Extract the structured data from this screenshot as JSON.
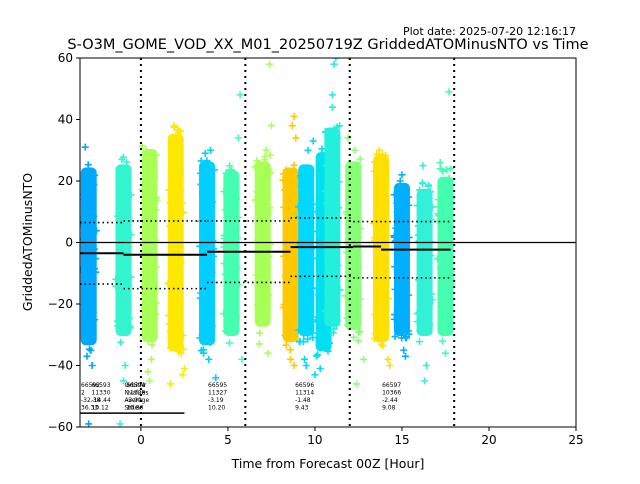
{
  "chart_data": {
    "type": "scatter",
    "title": "S-O3M_GOME_VOD_XX_M01_20250719Z GriddedATOMinusNTO vs Time",
    "plot_date": "Plot date: 2025-07-20 12:16:17",
    "xlabel": "Time from Forecast 00Z [Hour]",
    "ylabel": "GriddedATOMinusNTO",
    "xlim": [
      -3.5,
      25
    ],
    "ylim": [
      -60,
      60
    ],
    "xticks": [
      0,
      5,
      10,
      15,
      20,
      25
    ],
    "yticks": [
      -60,
      -40,
      -20,
      0,
      20,
      40,
      60
    ],
    "grid": false,
    "legend": "none",
    "reference_line_y": 0,
    "window_boundaries_x": [
      0,
      6,
      12,
      18
    ],
    "clusters": [
      {
        "x": -3.0,
        "top": 27,
        "bottom": -36,
        "color": "#00a8ff",
        "outliers": [
          [
            -3.2,
            31
          ],
          [
            -3.1,
            -37
          ],
          [
            -2.8,
            -40
          ],
          [
            -3.0,
            -59
          ]
        ]
      },
      {
        "x": -1.0,
        "top": 28,
        "bottom": -33,
        "color": "#33f5d0",
        "outliers": [
          [
            -1.1,
            27
          ],
          [
            -0.9,
            -40
          ],
          [
            -1.0,
            -45
          ],
          [
            -1.2,
            -59
          ]
        ]
      },
      {
        "x": 0.5,
        "top": 33,
        "bottom": -35,
        "color": "#a8ff55",
        "outliers": [
          [
            0.3,
            30
          ],
          [
            0.6,
            -38
          ],
          [
            0.4,
            -42
          ],
          [
            0.5,
            -45
          ]
        ]
      },
      {
        "x": 2.0,
        "top": 38,
        "bottom": -38,
        "color": "#ffe800",
        "outliers": [
          [
            1.9,
            38
          ],
          [
            2.2,
            36
          ],
          [
            1.7,
            -46
          ],
          [
            2.4,
            -43
          ],
          [
            2.5,
            -41
          ]
        ]
      },
      {
        "x": 3.8,
        "top": 29,
        "bottom": -36,
        "color": "#00cfff",
        "outliers": [
          [
            3.7,
            29
          ],
          [
            4.0,
            30
          ],
          [
            3.9,
            -38
          ],
          [
            3.6,
            -36
          ],
          [
            4.3,
            -44
          ]
        ]
      },
      {
        "x": 5.2,
        "top": 26,
        "bottom": -33,
        "color": "#44ffb0",
        "outliers": [
          [
            5.1,
            25
          ],
          [
            5.6,
            34
          ],
          [
            5.7,
            48
          ],
          [
            5.8,
            -38
          ]
        ]
      },
      {
        "x": 7.0,
        "top": 29,
        "bottom": -30,
        "color": "#a8ff55",
        "outliers": [
          [
            7.2,
            30
          ],
          [
            7.5,
            38
          ],
          [
            7.4,
            58
          ],
          [
            6.8,
            -33
          ],
          [
            7.3,
            -36
          ]
        ]
      },
      {
        "x": 8.6,
        "top": 27,
        "bottom": -35,
        "color": "#ffc800",
        "outliers": [
          [
            8.8,
            41
          ],
          [
            8.7,
            38
          ],
          [
            8.9,
            34
          ],
          [
            8.6,
            -38
          ],
          [
            8.8,
            -40
          ]
        ]
      },
      {
        "x": 9.5,
        "top": 28,
        "bottom": -33,
        "color": "#00d8ff",
        "outliers": [
          [
            9.6,
            30
          ],
          [
            9.9,
            33
          ],
          [
            9.4,
            -38
          ],
          [
            9.5,
            -40
          ]
        ]
      },
      {
        "x": 10.5,
        "top": 32,
        "bottom": -38,
        "color": "#00e0f0",
        "outliers": [
          [
            10.6,
            36
          ],
          [
            10.3,
            -41
          ],
          [
            10.0,
            -43
          ]
        ]
      },
      {
        "x": 11.0,
        "top": 40,
        "bottom": -30,
        "color": "#22f0dd",
        "outliers": [
          [
            11.0,
            48
          ],
          [
            11.1,
            58
          ],
          [
            11.2,
            60
          ],
          [
            11.0,
            44
          ]
        ]
      },
      {
        "x": 12.2,
        "top": 29,
        "bottom": -31,
        "color": "#88ff77",
        "outliers": [
          [
            12.3,
            30
          ],
          [
            11.9,
            34
          ],
          [
            12.5,
            -32
          ],
          [
            12.8,
            -38
          ],
          [
            12.4,
            -46
          ]
        ]
      },
      {
        "x": 13.8,
        "top": 31,
        "bottom": -35,
        "color": "#ffe000",
        "outliers": [
          [
            13.7,
            30
          ],
          [
            13.9,
            28
          ],
          [
            14.2,
            -38
          ],
          [
            14.3,
            -40
          ]
        ]
      },
      {
        "x": 15.0,
        "top": 22,
        "bottom": -33,
        "color": "#00b0ff",
        "outliers": [
          [
            14.9,
            20
          ],
          [
            15.0,
            22
          ],
          [
            15.1,
            -35
          ],
          [
            15.2,
            -37
          ]
        ]
      },
      {
        "x": 16.3,
        "top": 20,
        "bottom": -33,
        "color": "#33f0d8",
        "outliers": [
          [
            16.2,
            25
          ],
          [
            16.4,
            -40
          ],
          [
            16.3,
            -45
          ]
        ]
      },
      {
        "x": 17.5,
        "top": 24,
        "bottom": -33,
        "color": "#44ffb0",
        "outliers": [
          [
            17.2,
            26
          ],
          [
            17.8,
            24
          ],
          [
            17.7,
            49
          ],
          [
            17.5,
            -36
          ]
        ]
      }
    ],
    "mean_segments": [
      {
        "x0": -3.5,
        "x1": -1.0,
        "y": -3.5
      },
      {
        "x0": -1.0,
        "x1": 3.8,
        "y": -4.0
      },
      {
        "x0": 3.8,
        "x1": 8.6,
        "y": -3.0
      },
      {
        "x0": 8.6,
        "x1": 12.2,
        "y": -1.5
      },
      {
        "x0": 12.2,
        "x1": 13.8,
        "y": -1.3
      },
      {
        "x0": 13.8,
        "x1": 17.8,
        "y": -2.3
      }
    ],
    "upper_dotted_segments": [
      {
        "x0": -3.5,
        "x1": -1.0,
        "y": 6.5
      },
      {
        "x0": -1.0,
        "x1": 3.8,
        "y": 7.0
      },
      {
        "x0": 3.8,
        "x1": 8.6,
        "y": 7.0
      },
      {
        "x0": 8.6,
        "x1": 12.2,
        "y": 8.0
      },
      {
        "x0": 12.2,
        "x1": 17.8,
        "y": 6.8
      }
    ],
    "lower_dotted_segments": [
      {
        "x0": -3.5,
        "x1": -1.0,
        "y": -13.5
      },
      {
        "x0": -1.0,
        "x1": 3.8,
        "y": -15.0
      },
      {
        "x0": 3.8,
        "x1": 8.6,
        "y": -13.0
      },
      {
        "x0": 8.6,
        "x1": 12.2,
        "y": -11.0
      },
      {
        "x0": 12.2,
        "x1": 17.8,
        "y": -11.5
      }
    ],
    "stats_blocks": [
      {
        "x": -3.5,
        "lines": [
          "66592",
          "2",
          "-32.38",
          "36.33"
        ]
      },
      {
        "x": -2.9,
        "lines": [
          "66593",
          "11330",
          "-14.44",
          "10.12"
        ]
      },
      {
        "x": -1.0,
        "lines": [
          "OrbitNr",
          "Nvalues",
          "Average",
          "Stdev"
        ]
      },
      {
        "x": -0.9,
        "lines": [
          "66594",
          "11328",
          "-3.99",
          "10.80"
        ]
      },
      {
        "x": 3.8,
        "lines": [
          "66595",
          "11327",
          "-3.19",
          "10.20"
        ]
      },
      {
        "x": 8.8,
        "lines": [
          "66596",
          "11314",
          "-1.48",
          "9.43"
        ]
      },
      {
        "x": 13.8,
        "lines": [
          "66597",
          "10366",
          "-2.44",
          "9.08"
        ]
      }
    ],
    "stats_underline": {
      "x0": -3.5,
      "x1": 2.5,
      "y": -55.5
    }
  }
}
